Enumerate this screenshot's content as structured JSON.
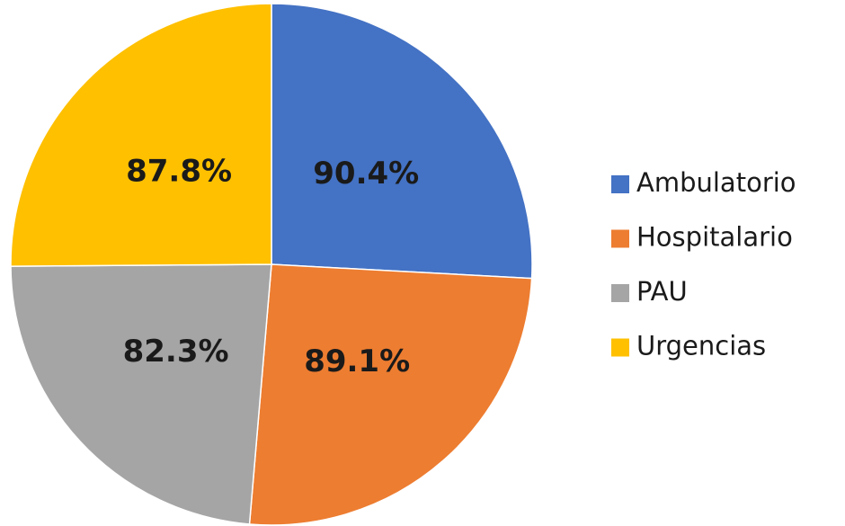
{
  "chart_data": {
    "type": "pie",
    "categories": [
      "Ambulatorio",
      "Hospitalario",
      "PAU",
      "Urgencias"
    ],
    "values": [
      90.4,
      89.1,
      82.3,
      87.8
    ],
    "value_labels": [
      "90.4%",
      "89.1%",
      "82.3%",
      "87.8%"
    ],
    "colors": [
      "#4472c4",
      "#ed7d31",
      "#a5a5a5",
      "#ffc000"
    ],
    "legend": "right"
  }
}
